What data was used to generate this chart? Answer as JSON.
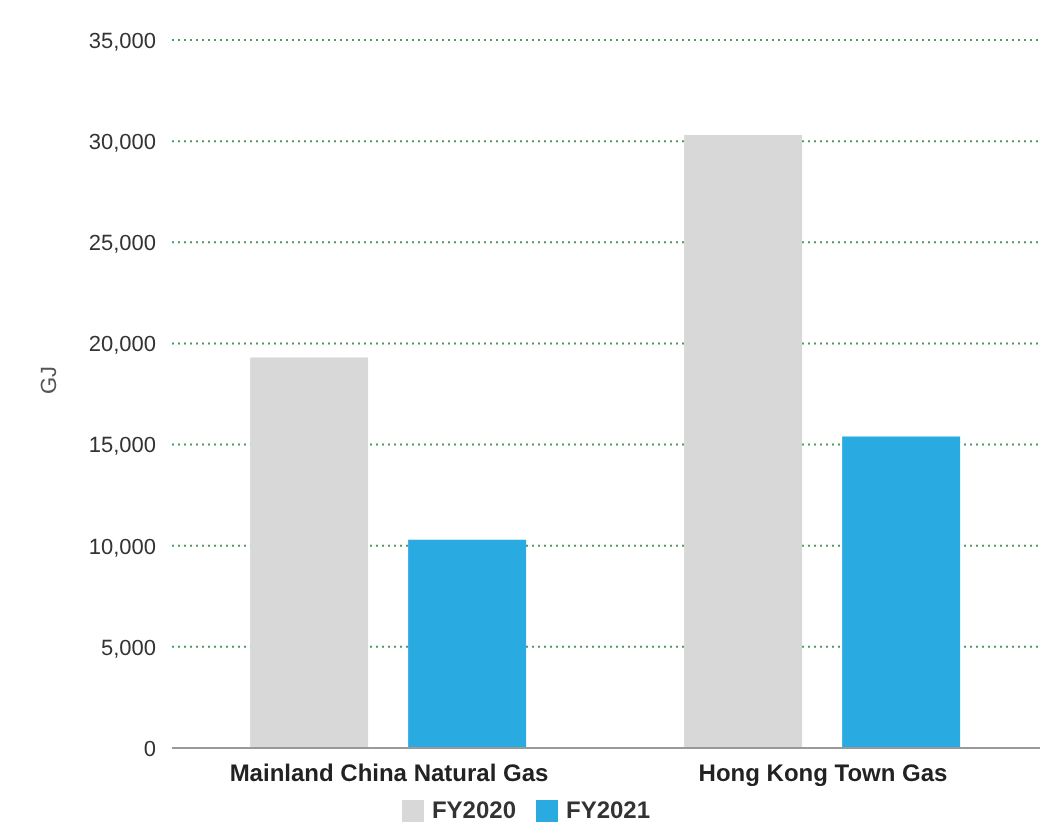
{
  "chart_data": {
    "type": "bar",
    "ylabel": "GJ",
    "categories": [
      "Mainland China Natural Gas",
      "Hong Kong Town Gas"
    ],
    "series": [
      {
        "name": "FY2020",
        "color": "#d9d8d8",
        "values": [
          19300,
          30300
        ]
      },
      {
        "name": "FY2021",
        "color": "#29abe2",
        "values": [
          10300,
          15400
        ]
      }
    ],
    "ylim": [
      0,
      35000
    ],
    "yticks": [
      0,
      {
        "value": 5000,
        "label": "5,000"
      },
      {
        "value": 10000,
        "label": "10,000"
      },
      {
        "value": 15000,
        "label": "15,000"
      },
      {
        "value": 20000,
        "label": "20,000"
      },
      {
        "value": 25000,
        "label": "25,000"
      },
      {
        "value": 30000,
        "label": "30,000"
      },
      {
        "value": 35000,
        "label": "35,000"
      }
    ],
    "grid": "y",
    "legend": "bottom"
  }
}
